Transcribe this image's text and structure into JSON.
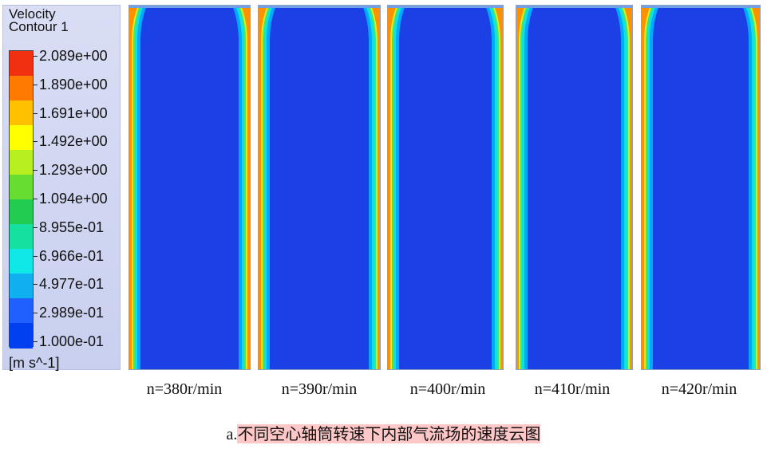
{
  "legend": {
    "title_line1": "Velocity",
    "title_line2": "Contour 1",
    "unit": "[m s^-1]",
    "levels": [
      "2.089e+00",
      "1.890e+00",
      "1.691e+00",
      "1.492e+00",
      "1.293e+00",
      "1.094e+00",
      "8.955e-01",
      "6.966e-01",
      "4.977e-01",
      "2.989e-01",
      "1.000e-01"
    ],
    "colors": [
      "#f03010",
      "#ff7a00",
      "#ffc000",
      "#ffff00",
      "#b8ef20",
      "#66dd30",
      "#22cc50",
      "#16e0a0",
      "#10e8e8",
      "#10b0f0",
      "#2060ff",
      "#0040f0"
    ]
  },
  "panels": [
    {
      "label": "n=380r/min"
    },
    {
      "label": "n=390r/min"
    },
    {
      "label": "n=400r/min"
    },
    {
      "label": "n=410r/min"
    },
    {
      "label": "n=420r/min"
    }
  ],
  "caption": {
    "prefix": "a.",
    "text": "不同空心轴筒转速下内部气流场的速度云图"
  },
  "field_color": "#1a40e6"
}
